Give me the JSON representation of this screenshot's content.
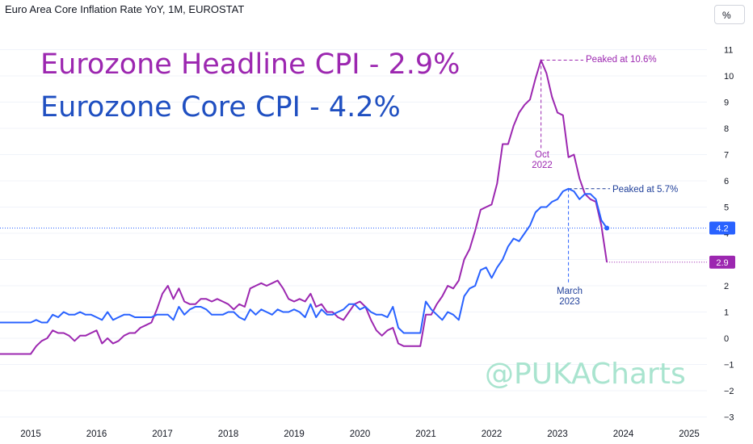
{
  "chart_title": "Euro Area Core Inflation Rate YoY, 1M, EUROSTAT",
  "unit_button": "%",
  "headline_text": "Eurozone Headline CPI - 2.9%",
  "core_text": "Eurozone Core CPI - 4.2%",
  "watermark": "@PUKACharts",
  "annotations": {
    "headline_peak": "Peaked at 10.6%",
    "core_peak": "Peaked at 5.7%",
    "oct_line1": "Oct",
    "oct_line2": "2022",
    "march_line1": "March",
    "march_line2": "2023"
  },
  "chart_data": {
    "type": "line",
    "title": "Euro Area Core Inflation Rate YoY, 1M, EUROSTAT",
    "ylabel": "%",
    "ylim": [
      -3,
      11.5
    ],
    "y_ticks": [
      -3,
      -2,
      -1,
      0,
      1,
      2,
      3,
      4,
      5,
      6,
      7,
      8,
      9,
      10,
      11
    ],
    "x_ticks": [
      "2015",
      "2016",
      "2017",
      "2018",
      "2019",
      "2020",
      "2021",
      "2022",
      "2023",
      "2024",
      "2025"
    ],
    "x_start": "2015-01",
    "colors": {
      "headline": "#9c27b0",
      "core": "#2962ff"
    },
    "last_values": {
      "core": "4.2",
      "headline": "2.9"
    },
    "series": [
      {
        "key": "core",
        "values": [
          0.6,
          0.7,
          0.6,
          0.6,
          0.9,
          0.8,
          1.0,
          0.9,
          0.9,
          1.0,
          0.9,
          0.9,
          0.8,
          0.7,
          1.0,
          0.7,
          0.8,
          0.9,
          0.9,
          0.8,
          0.8,
          0.8,
          0.8,
          0.9,
          0.9,
          0.9,
          0.7,
          1.2,
          0.9,
          1.1,
          1.2,
          1.2,
          1.1,
          0.9,
          0.9,
          0.9,
          1.0,
          1.0,
          0.8,
          0.7,
          1.1,
          0.9,
          1.1,
          1.0,
          0.9,
          1.1,
          1.0,
          1.0,
          1.1,
          1.0,
          0.8,
          1.3,
          0.8,
          1.1,
          0.9,
          0.9,
          1.0,
          1.1,
          1.3,
          1.3,
          1.1,
          1.2,
          1.0,
          0.9,
          0.9,
          0.8,
          1.2,
          0.4,
          0.2,
          0.2,
          0.2,
          0.2,
          1.4,
          1.1,
          0.9,
          0.7,
          1.0,
          0.9,
          0.7,
          1.6,
          1.9,
          2.0,
          2.6,
          2.7,
          2.3,
          2.7,
          3.0,
          3.5,
          3.8,
          3.7,
          4.0,
          4.3,
          4.8,
          5.0,
          5.0,
          5.2,
          5.3,
          5.6,
          5.7,
          5.6,
          5.3,
          5.5,
          5.5,
          5.3,
          4.5,
          4.2
        ]
      },
      {
        "key": "headline",
        "values": [
          -0.6,
          -0.3,
          -0.1,
          0.0,
          0.3,
          0.2,
          0.2,
          0.1,
          -0.1,
          0.1,
          0.1,
          0.2,
          0.3,
          -0.2,
          0.0,
          -0.2,
          -0.1,
          0.1,
          0.2,
          0.2,
          0.4,
          0.5,
          0.6,
          1.1,
          1.7,
          2.0,
          1.5,
          1.9,
          1.4,
          1.3,
          1.3,
          1.5,
          1.5,
          1.4,
          1.5,
          1.4,
          1.3,
          1.1,
          1.3,
          1.2,
          1.9,
          2.0,
          2.1,
          2.0,
          2.1,
          2.2,
          1.9,
          1.5,
          1.4,
          1.5,
          1.4,
          1.7,
          1.2,
          1.3,
          1.0,
          1.0,
          0.8,
          0.7,
          1.0,
          1.3,
          1.4,
          1.2,
          0.7,
          0.3,
          0.1,
          0.3,
          0.4,
          -0.2,
          -0.3,
          -0.3,
          -0.3,
          -0.3,
          0.9,
          0.9,
          1.3,
          1.6,
          2.0,
          1.9,
          2.2,
          3.0,
          3.4,
          4.1,
          4.9,
          5.0,
          5.1,
          5.9,
          7.4,
          7.4,
          8.1,
          8.6,
          8.9,
          9.1,
          9.9,
          10.6,
          10.1,
          9.2,
          8.6,
          8.5,
          6.9,
          7.0,
          6.1,
          5.5,
          5.3,
          5.2,
          4.3,
          2.9
        ]
      }
    ]
  }
}
